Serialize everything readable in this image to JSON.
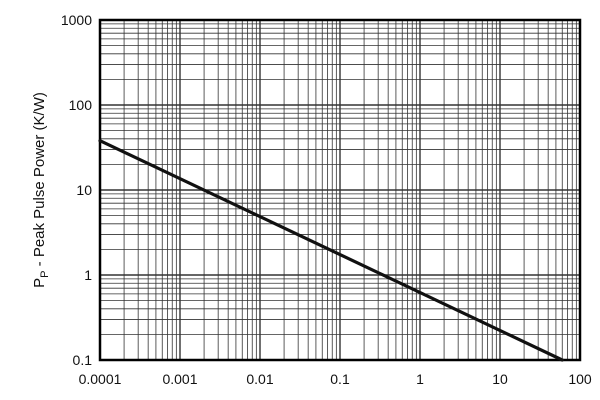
{
  "chart_data": {
    "type": "line",
    "xscale": "log",
    "yscale": "log",
    "xlim": [
      0.0001,
      100
    ],
    "ylim": [
      0.1,
      1000
    ],
    "x_ticks": [
      "0.0001",
      "0.001",
      "0.01",
      "0.1",
      "1",
      "10",
      "100"
    ],
    "y_ticks": [
      "0.1",
      "1",
      "10",
      "100",
      "1000"
    ],
    "ylabel": {
      "symbol": "P",
      "subscript": "P",
      "text": " - Peak Pulse Power (K/W)"
    },
    "xlabel": "",
    "grid": true,
    "series": [
      {
        "x": [
          0.0001,
          60
        ],
        "y": [
          38,
          0.1
        ]
      }
    ],
    "colors": {
      "line": "#111111",
      "grid": "#333333",
      "axes": "#000000"
    }
  }
}
